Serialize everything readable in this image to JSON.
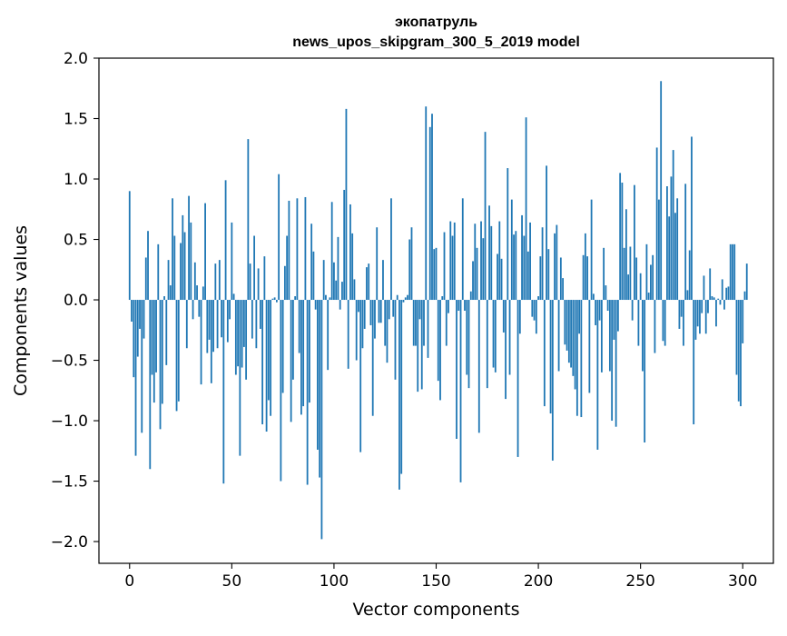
{
  "chart_data": {
    "type": "bar",
    "title_line1": "экопатруль",
    "title_line2": "news_upos_skipgram_300_5_2019 model",
    "xlabel": "Vector components",
    "ylabel": "Components values",
    "xlim": [
      -15,
      315
    ],
    "ylim": [
      -2.18,
      2.0
    ],
    "xticks": [
      0,
      50,
      100,
      150,
      200,
      250,
      300
    ],
    "yticks": [
      -2.0,
      -1.5,
      -1.0,
      -0.5,
      0.0,
      0.5,
      1.0,
      1.5,
      2.0
    ],
    "ytick_labels": [
      "−2.0",
      "−1.5",
      "−1.0",
      "−0.5",
      "0.0",
      "0.5",
      "1.0",
      "1.5",
      "2.0"
    ],
    "bar_color": "#1f77b4",
    "values": [
      0.9,
      -0.18,
      -0.64,
      -1.29,
      -0.47,
      -0.24,
      -1.1,
      -0.32,
      0.35,
      0.57,
      -1.4,
      -0.62,
      -0.85,
      -0.6,
      0.46,
      -1.07,
      -0.86,
      0.03,
      -0.54,
      0.33,
      0.12,
      0.84,
      0.53,
      -0.92,
      -0.84,
      0.47,
      0.7,
      0.56,
      -0.4,
      0.86,
      0.64,
      -0.16,
      0.31,
      0.12,
      -0.14,
      -0.7,
      0.11,
      0.8,
      -0.44,
      -0.33,
      -0.69,
      -0.43,
      0.3,
      -0.4,
      0.33,
      -0.31,
      -1.52,
      0.99,
      -0.35,
      -0.16,
      0.64,
      0.05,
      -0.62,
      -0.55,
      -1.29,
      -0.56,
      -0.39,
      -0.66,
      1.33,
      0.3,
      -0.32,
      0.53,
      -0.4,
      0.26,
      -0.24,
      -1.03,
      0.36,
      -1.09,
      -0.83,
      -0.96,
      0.01,
      0.02,
      -0.02,
      1.04,
      -1.5,
      -0.77,
      0.28,
      0.53,
      0.82,
      -1.01,
      -0.66,
      0.03,
      0.84,
      -0.44,
      -0.95,
      -0.88,
      0.85,
      -1.53,
      -0.85,
      0.63,
      0.4,
      -0.08,
      -1.24,
      -1.47,
      -1.98,
      0.33,
      0.04,
      -0.58,
      0.02,
      0.81,
      0.31,
      0.16,
      0.52,
      -0.08,
      0.15,
      0.91,
      1.58,
      -0.57,
      0.79,
      0.55,
      0.17,
      -0.5,
      -0.1,
      -1.26,
      -0.4,
      -0.24,
      0.27,
      0.3,
      -0.21,
      -0.96,
      -0.32,
      0.6,
      -0.19,
      -0.19,
      0.33,
      -0.38,
      -0.52,
      -0.16,
      0.84,
      -0.14,
      -0.66,
      0.04,
      -1.57,
      -1.44,
      -0.02,
      0.02,
      0.04,
      0.5,
      0.6,
      -0.38,
      -0.38,
      -0.76,
      -0.16,
      -0.74,
      -0.38,
      1.6,
      -0.48,
      1.43,
      1.54,
      0.42,
      0.43,
      -0.67,
      -0.83,
      0.03,
      0.56,
      -0.38,
      -0.11,
      0.65,
      0.53,
      0.64,
      -1.15,
      -0.09,
      -1.51,
      0.84,
      -0.09,
      -0.62,
      -0.73,
      0.07,
      0.32,
      0.63,
      0.43,
      -1.1,
      0.65,
      0.51,
      1.39,
      -0.73,
      0.78,
      0.61,
      -0.56,
      -0.6,
      0.38,
      0.65,
      0.34,
      -0.27,
      -0.82,
      1.09,
      -0.62,
      0.83,
      0.54,
      0.57,
      -1.3,
      -0.28,
      0.7,
      0.53,
      1.51,
      0.4,
      0.64,
      -0.14,
      -0.17,
      -0.28,
      0.03,
      0.36,
      0.6,
      -0.88,
      1.11,
      0.42,
      -0.94,
      -1.33,
      0.55,
      0.62,
      -0.59,
      0.35,
      0.18,
      -0.37,
      -0.42,
      -0.52,
      -0.56,
      -0.63,
      -0.74,
      -0.96,
      -0.28,
      -0.97,
      0.37,
      0.55,
      0.36,
      -0.77,
      0.83,
      0.05,
      -0.21,
      -1.24,
      -0.17,
      -0.6,
      0.43,
      0.12,
      -0.09,
      -0.59,
      -1.0,
      -0.33,
      -1.05,
      -0.26,
      1.05,
      0.97,
      0.43,
      0.75,
      0.21,
      0.44,
      -0.17,
      0.95,
      0.35,
      -0.38,
      0.22,
      -0.59,
      -1.18,
      0.46,
      0.06,
      0.29,
      0.37,
      -0.44,
      1.26,
      0.83,
      1.81,
      -0.34,
      -0.38,
      0.94,
      0.69,
      1.02,
      1.24,
      0.72,
      0.84,
      -0.24,
      -0.14,
      -0.38,
      0.96,
      0.08,
      0.41,
      1.35,
      -1.03,
      -0.33,
      -0.22,
      -0.28,
      -0.11,
      0.2,
      -0.28,
      -0.11,
      0.26,
      0.03,
      0.02,
      -0.22,
      0.01,
      -0.04,
      0.17,
      -0.08,
      0.1,
      0.11,
      0.46,
      0.46,
      0.46,
      -0.62,
      -0.84,
      -0.88,
      -0.36,
      0.07,
      0.3
    ]
  }
}
